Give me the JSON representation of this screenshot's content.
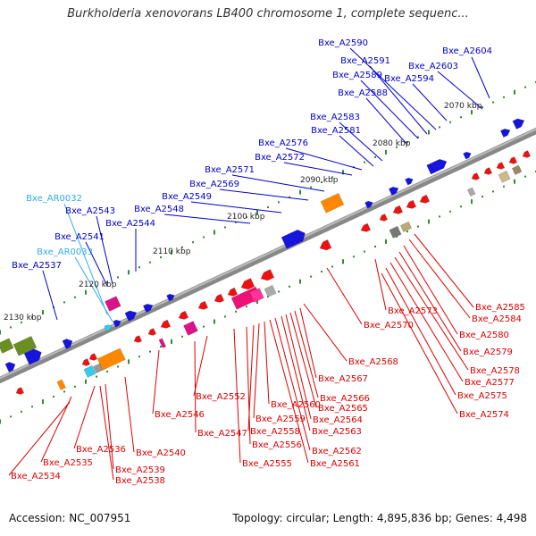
{
  "title": "Burkholderia xenovorans LB400 chromosome 1, complete sequenc...",
  "footer": {
    "accession": "Accession: NC_007951",
    "stats": "Topology: circular; Length: 4,895,836 bp; Genes: 4,498"
  },
  "colors": {
    "forward_label": "#0000cc",
    "reverse_label": "#dd0000",
    "rna_label": "#33aaee",
    "backbone": "#888888",
    "tick": "#2e8b2e"
  },
  "scale_labels": [
    "2070 kbp",
    "2080 kbp",
    "2090 kbp",
    "2100 kbp",
    "2110 kbp",
    "2120 kbp",
    "2130 kbp"
  ],
  "forward_labels": [
    "Bxe_A2604",
    "Bxe_A2603",
    "Bxe_A2594",
    "Bxe_A2590",
    "Bxe_A2591",
    "Bxe_A2589",
    "Bxe_A2588",
    "Bxe_A2583",
    "Bxe_A2581",
    "Bxe_A2576",
    "Bxe_A2572",
    "Bxe_A2571",
    "Bxe_A2569",
    "Bxe_A2549",
    "Bxe_A2548",
    "Bxe_A2544",
    "Bxe_A2543",
    "Bxe_A2541",
    "Bxe_A2537"
  ],
  "rna_labels": [
    "Bxe_AR0032",
    "Bxe_AR0033"
  ],
  "reverse_labels": [
    "Bxe_A2585",
    "Bxe_A2584",
    "Bxe_A2580",
    "Bxe_A2579",
    "Bxe_A2578",
    "Bxe_A2577",
    "Bxe_A2575",
    "Bxe_A2574",
    "Bxe_A2573",
    "Bxe_A2570",
    "Bxe_A2568",
    "Bxe_A2567",
    "Bxe_A2566",
    "Bxe_A2565",
    "Bxe_A2564",
    "Bxe_A2563",
    "Bxe_A2562",
    "Bxe_A2561",
    "Bxe_A2560",
    "Bxe_A2559",
    "Bxe_A2558",
    "Bxe_A2556",
    "Bxe_A2555",
    "Bxe_A2552",
    "Bxe_A2547",
    "Bxe_A2546",
    "Bxe_A2540",
    "Bxe_A2539",
    "Bxe_A2538",
    "Bxe_A2536",
    "Bxe_A2535",
    "Bxe_A2534"
  ]
}
